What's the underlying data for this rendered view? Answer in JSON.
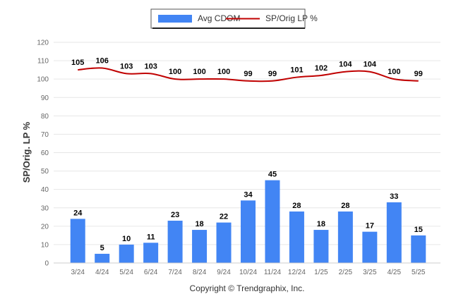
{
  "chart_data": {
    "type": "bar",
    "categories": [
      "3/24",
      "4/24",
      "5/24",
      "6/24",
      "7/24",
      "8/24",
      "9/24",
      "10/24",
      "11/24",
      "12/24",
      "1/25",
      "2/25",
      "3/25",
      "4/25",
      "5/25"
    ],
    "series": [
      {
        "name": "Avg CDOM",
        "kind": "bar",
        "color": "#4285f4",
        "values": [
          24,
          5,
          10,
          11,
          23,
          18,
          22,
          34,
          45,
          28,
          18,
          28,
          17,
          33,
          15
        ]
      },
      {
        "name": "SP/Orig LP %",
        "kind": "line",
        "color": "#c00000",
        "values": [
          105,
          106,
          103,
          103,
          100,
          100,
          100,
          99,
          99,
          101,
          102,
          104,
          104,
          100,
          99
        ]
      }
    ],
    "ylabel": "SP/Orig. LP %",
    "ylim": [
      0,
      120
    ],
    "yticks": [
      0,
      10,
      20,
      30,
      40,
      50,
      60,
      70,
      80,
      90,
      100,
      110,
      120
    ],
    "grid": true,
    "legend": "top-center"
  },
  "footer": {
    "copyright": "Copyright © Trendgraphix, Inc."
  }
}
